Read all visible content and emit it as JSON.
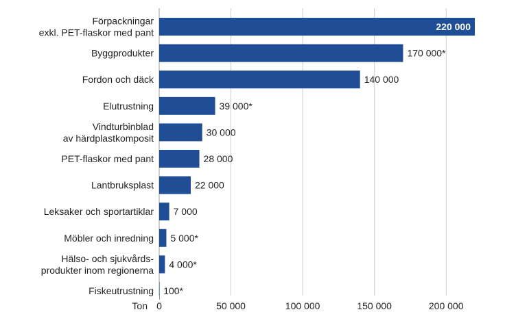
{
  "chart_data": {
    "type": "bar",
    "orientation": "horizontal",
    "categories": [
      [
        "Förpackningar",
        "exkl. PET-flaskor med pant"
      ],
      [
        "Byggprodukter"
      ],
      [
        "Fordon och däck"
      ],
      [
        "Elutrustning"
      ],
      [
        "Vindturbinblad",
        "av härdplastkomposit"
      ],
      [
        "PET-flaskor med pant"
      ],
      [
        "Lantbruksplast"
      ],
      [
        "Leksaker och sportartiklar"
      ],
      [
        "Möbler och inredning"
      ],
      [
        "Hälso- och sjukvårds-",
        "produkter inom regionerna"
      ],
      [
        "Fiskeutrustning"
      ]
    ],
    "values": [
      220000,
      170000,
      140000,
      39000,
      30000,
      28000,
      22000,
      7000,
      5000,
      4000,
      100
    ],
    "value_labels": [
      "220 000",
      "170 000*",
      "140 000",
      "39 000*",
      "30 000",
      "28 000",
      "22 000",
      "7 000",
      "5 000*",
      "4 000*",
      "100*"
    ],
    "xlabel": "Ton",
    "xlim": [
      0,
      220000
    ],
    "x_ticks": [
      0,
      50000,
      100000,
      150000,
      200000
    ],
    "x_tick_labels": [
      "0",
      "50 000",
      "100 000",
      "150 000",
      "200 000"
    ],
    "grid": "vertical",
    "colors": {
      "bar": "#1f4e96",
      "grid": "#cccccc",
      "text": "#222222",
      "inside_label": "#ffffff"
    }
  }
}
